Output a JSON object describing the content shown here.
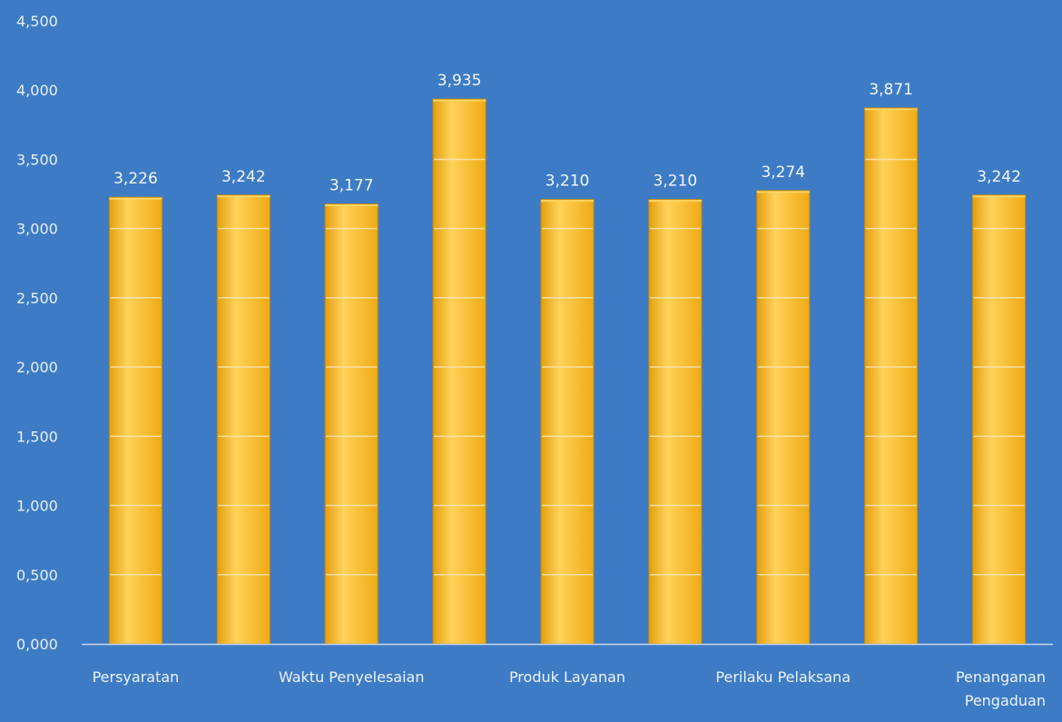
{
  "chart_data": {
    "type": "bar",
    "categories": [
      "Persyaratan",
      "",
      "Waktu Penyelesaian",
      "",
      "Produk Layanan",
      "",
      "Perilaku Pelaksana",
      "",
      "Penanganan Pengaduan"
    ],
    "values": [
      3.226,
      3.242,
      3.177,
      3.935,
      3.21,
      3.21,
      3.274,
      3.871,
      3.242
    ],
    "value_labels": [
      "3,226",
      "3,242",
      "3,177",
      "3,935",
      "3,210",
      "3,210",
      "3,274",
      "3,871",
      "3,242"
    ],
    "ylim": [
      0,
      4.5
    ],
    "y_ticks": [
      {
        "value": 0,
        "label": "0,000"
      },
      {
        "value": 0.5,
        "label": "0,500"
      },
      {
        "value": 1.0,
        "label": "1,000"
      },
      {
        "value": 1.5,
        "label": "1,500"
      },
      {
        "value": 2.0,
        "label": "2,000"
      },
      {
        "value": 2.5,
        "label": "2,500"
      },
      {
        "value": 3.0,
        "label": "3,000"
      },
      {
        "value": 3.5,
        "label": "3,500"
      },
      {
        "value": 4.0,
        "label": "4,000"
      },
      {
        "value": 4.5,
        "label": "4,500"
      }
    ],
    "grid": true,
    "legend": "none",
    "title": "",
    "xlabel": "",
    "ylabel": ""
  },
  "colors": {
    "background": "#3d7cc4",
    "bar": "#f6b81f",
    "bar_highlight": "#ffd460",
    "bar_edge": "#c88b09",
    "grid": "#f5e7ba",
    "axis": "#c6d3ea"
  }
}
